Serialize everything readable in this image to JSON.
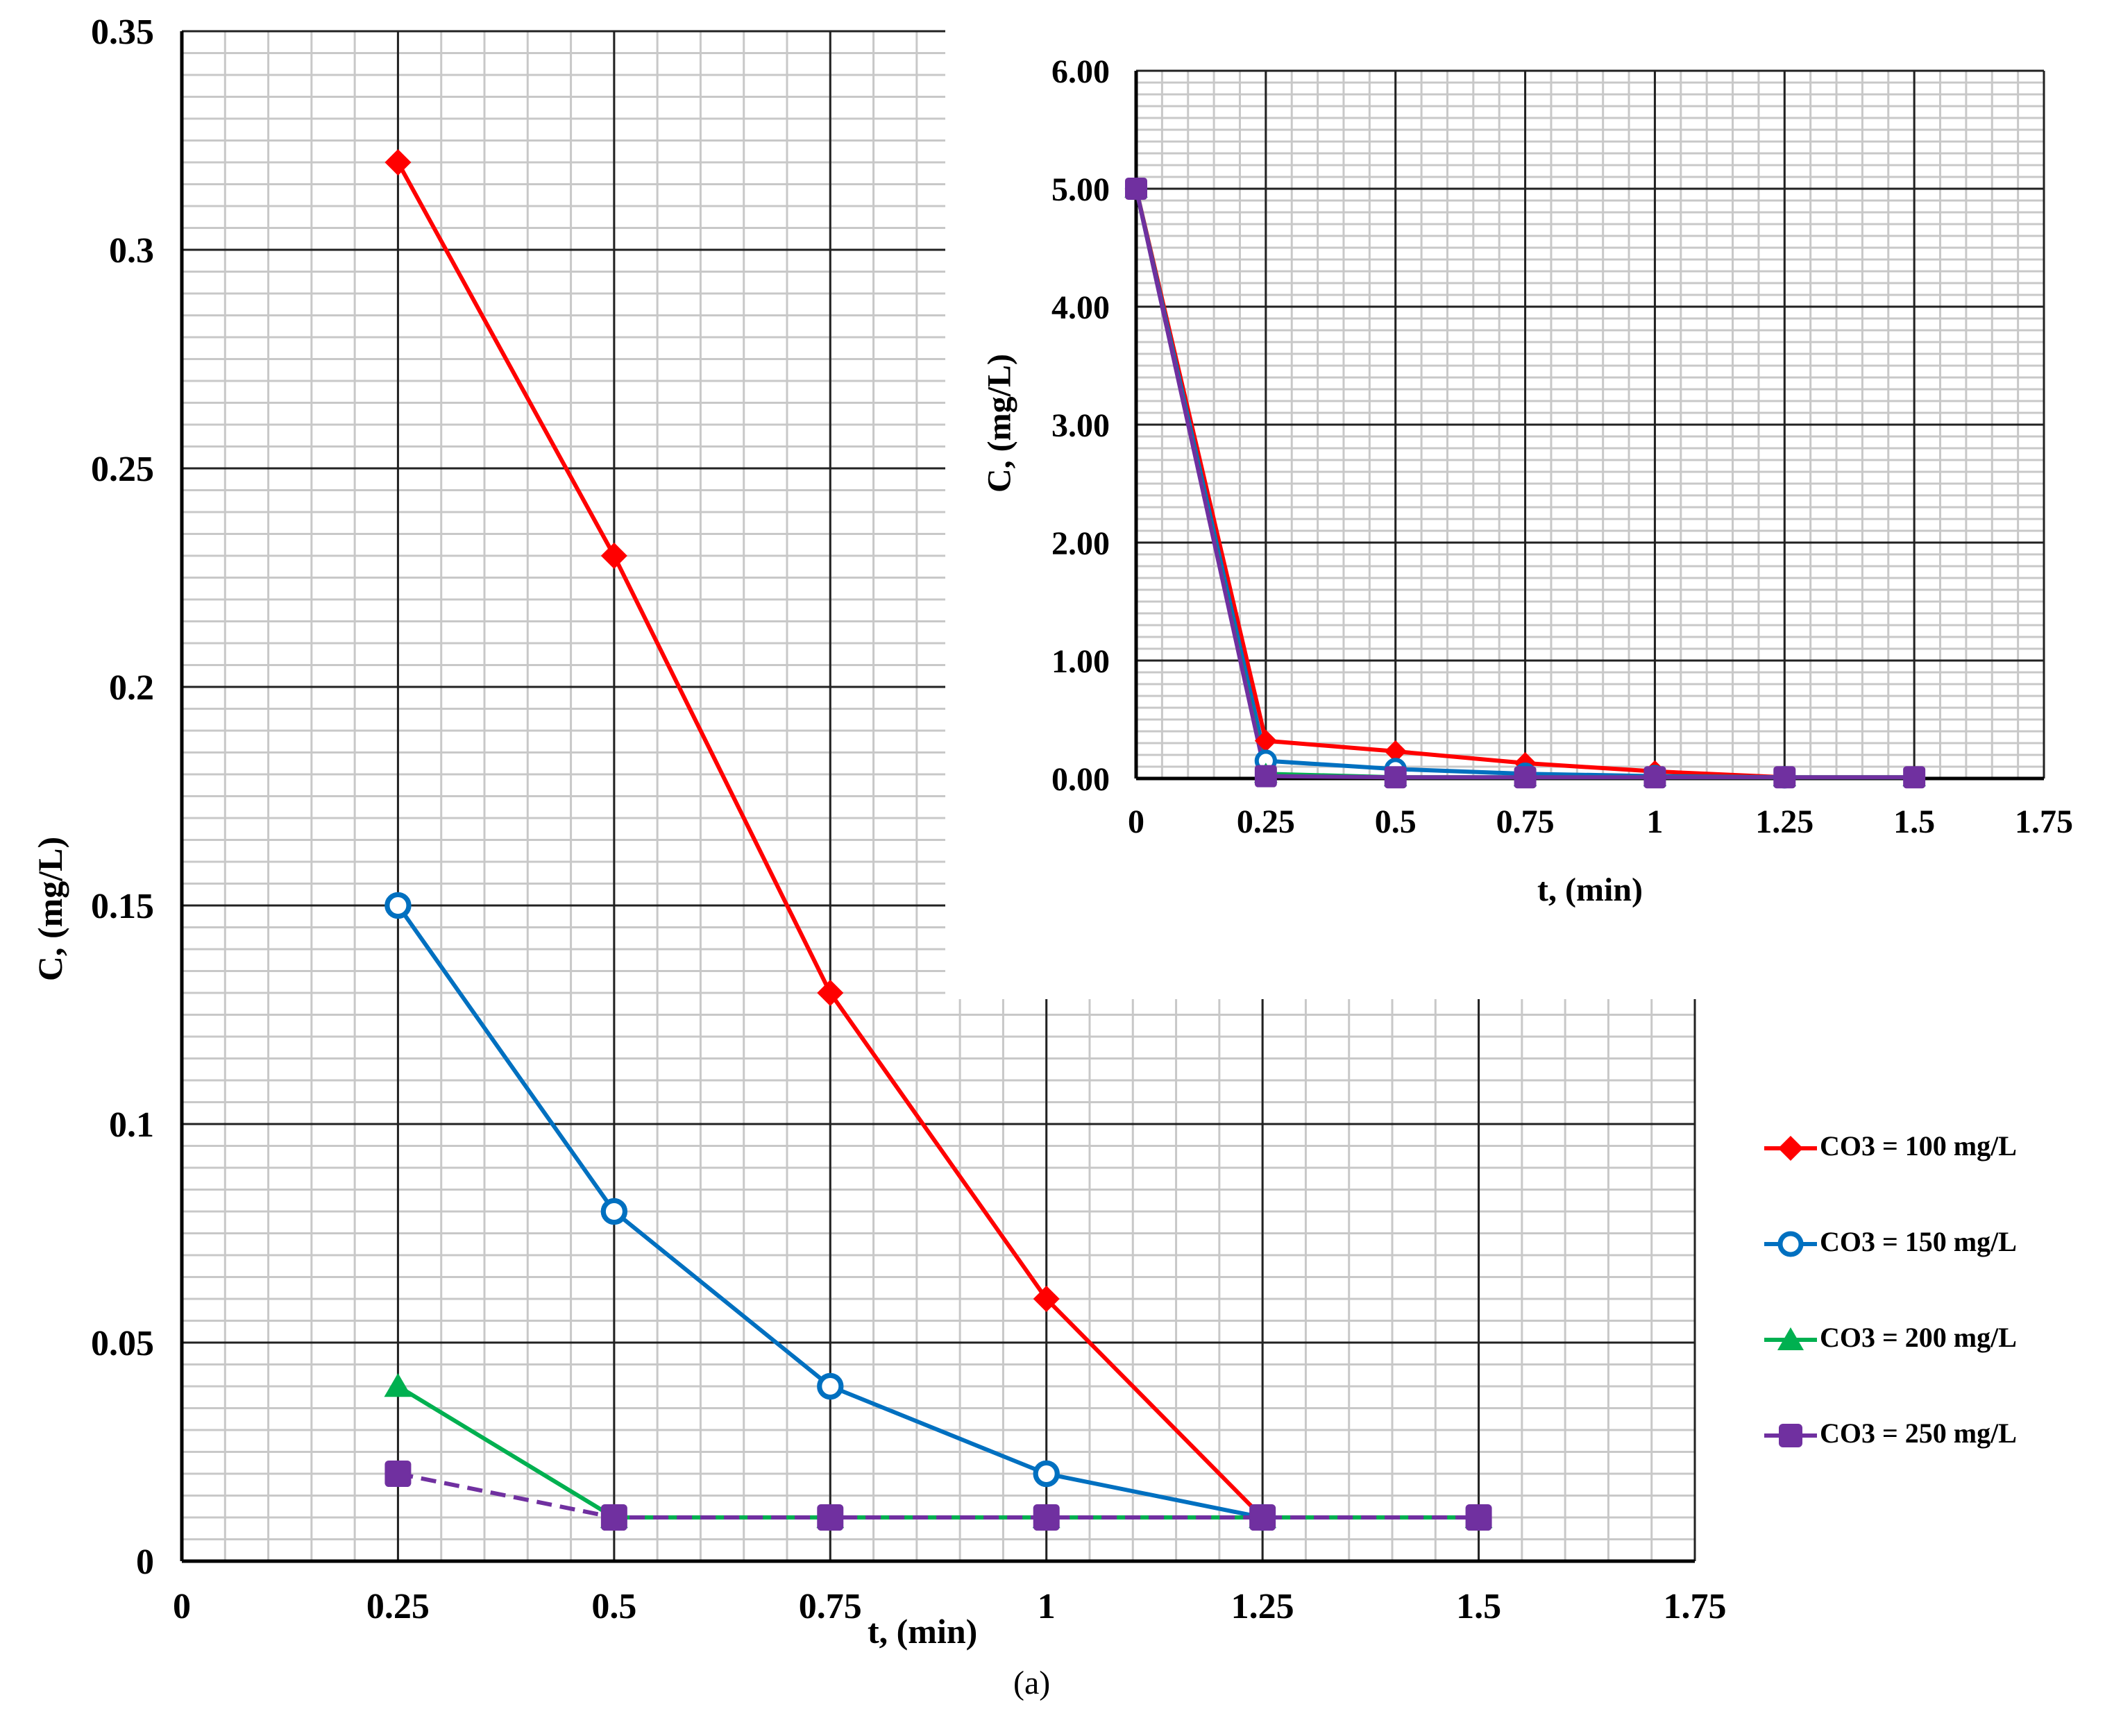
{
  "chart_data": [
    {
      "type": "line",
      "xlabel": "t, (min)",
      "ylabel": "C, (mg/L)",
      "xlim": [
        0,
        1.75
      ],
      "ylim": [
        0,
        0.35
      ],
      "x_ticks": [
        "0",
        "0.25",
        "0.5",
        "0.75",
        "1",
        "1.25",
        "1.5",
        "1.75"
      ],
      "y_ticks": [
        "0",
        "0.05",
        "0.1",
        "0.15",
        "0.2",
        "0.25",
        "0.3",
        "0.35"
      ],
      "grid": true,
      "legend": "right",
      "series": [
        {
          "name": "CO3 = 100 mg/L",
          "color": "#ff0000",
          "marker": "diamond",
          "dash": false,
          "x": [
            0.25,
            0.5,
            0.75,
            1,
            1.25
          ],
          "y": [
            0.32,
            0.23,
            0.13,
            0.06,
            0.01
          ]
        },
        {
          "name": "CO3 = 150 mg/L",
          "color": "#0070c0",
          "marker": "circle",
          "dash": false,
          "x": [
            0.25,
            0.5,
            0.75,
            1,
            1.25
          ],
          "y": [
            0.15,
            0.08,
            0.04,
            0.02,
            0.01
          ]
        },
        {
          "name": "CO3 = 200 mg/L",
          "color": "#00b050",
          "marker": "triangle",
          "dash": false,
          "x": [
            0.25,
            0.5,
            0.75,
            1,
            1.25,
            1.5
          ],
          "y": [
            0.04,
            0.01,
            0.01,
            0.01,
            0.01,
            0.01
          ]
        },
        {
          "name": "CO3 = 250 mg/L",
          "color": "#7030a0",
          "marker": "square",
          "dash": true,
          "x": [
            0.25,
            0.5,
            0.75,
            1,
            1.25,
            1.5
          ],
          "y": [
            0.02,
            0.01,
            0.01,
            0.01,
            0.01,
            0.01
          ]
        }
      ]
    },
    {
      "type": "line",
      "xlabel": "t, (min)",
      "ylabel": "C, (mg/L)",
      "xlim": [
        0,
        1.75
      ],
      "ylim": [
        0,
        6
      ],
      "x_ticks": [
        "0",
        "0.25",
        "0.5",
        "0.75",
        "1",
        "1.25",
        "1.5",
        "1.75"
      ],
      "y_ticks": [
        "0.00",
        "1.00",
        "2.00",
        "3.00",
        "4.00",
        "5.00",
        "6.00"
      ],
      "grid": true,
      "series": [
        {
          "color": "#ff0000",
          "marker": "diamond",
          "x": [
            0,
            0.25,
            0.5,
            0.75,
            1,
            1.25
          ],
          "y": [
            5,
            0.32,
            0.23,
            0.13,
            0.06,
            0.01
          ]
        },
        {
          "color": "#0070c0",
          "marker": "circle",
          "x": [
            0,
            0.25,
            0.5,
            0.75,
            1,
            1.25
          ],
          "y": [
            5,
            0.15,
            0.08,
            0.04,
            0.02,
            0.01
          ]
        },
        {
          "color": "#00b050",
          "marker": "triangle",
          "x": [
            0,
            0.25,
            0.5,
            0.75,
            1,
            1.25,
            1.5
          ],
          "y": [
            5,
            0.04,
            0.01,
            0.01,
            0.01,
            0.01,
            0.01
          ]
        },
        {
          "color": "#7030a0",
          "marker": "square",
          "x": [
            0,
            0.25,
            0.5,
            0.75,
            1,
            1.25,
            1.5
          ],
          "y": [
            5,
            0.02,
            0.01,
            0.01,
            0.01,
            0.01,
            0.01
          ]
        }
      ]
    }
  ],
  "caption": "(a)"
}
